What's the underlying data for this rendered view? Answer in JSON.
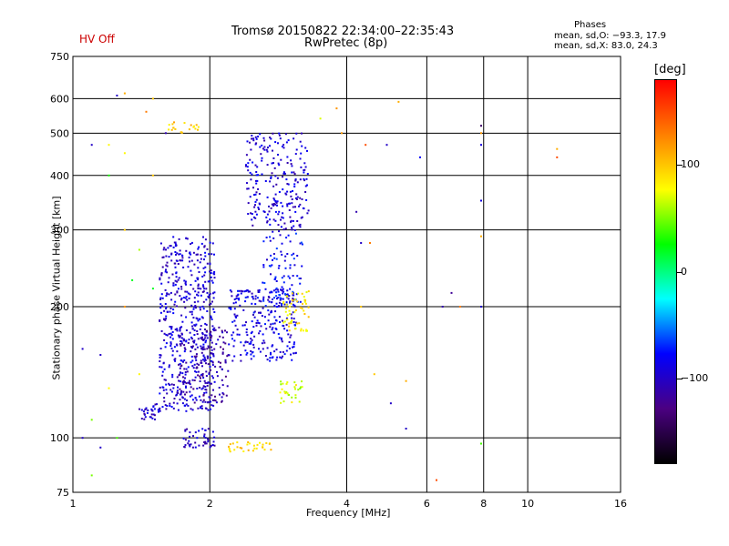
{
  "header": {
    "status": "HV Off",
    "title_line1": "Tromsø 20150822 22:34:00–22:35:43",
    "title_line2": "RwPretec (8p)",
    "phases_title": "Phases",
    "phases_o": "mean, sd,O: −93.3, 17.9",
    "phases_x": "mean, sd,X:  83.0, 24.3"
  },
  "colorbar": {
    "unit": "[deg]",
    "ticks": [
      "100",
      "0",
      "−100"
    ],
    "tick_values": [
      100,
      0,
      -100
    ],
    "range": [
      -180,
      180
    ],
    "colors": [
      "#ff0000",
      "#ff8000",
      "#ffff00",
      "#00ff00",
      "#00ffff",
      "#0000ff",
      "#4b0082",
      "#000000"
    ]
  },
  "colors": {
    "status": "#cc0000",
    "dominant_o": "#1a1aff",
    "dominant_x": "#e6e600"
  },
  "chart_data": {
    "type": "scatter",
    "title": "Tromsø 20150822 22:34:00–22:35:43",
    "subtitle": "RwPretec (8p)",
    "xlabel": "Frequency [MHz]",
    "ylabel": "Stationary phase Virtual Height [km]",
    "x_scale": "log2",
    "y_scale": "log",
    "xlim": [
      1,
      16
    ],
    "ylim": [
      75,
      750
    ],
    "x_ticks": [
      "1",
      "2",
      "4",
      "6",
      "8",
      "10",
      "16"
    ],
    "x_tick_values": [
      1,
      2,
      4,
      6,
      8,
      10,
      16
    ],
    "y_ticks": [
      "750",
      "600",
      "500",
      "400",
      "300",
      "200",
      "100",
      "75"
    ],
    "y_tick_values": [
      750,
      600,
      500,
      400,
      300,
      200,
      100,
      75
    ],
    "grid": true,
    "echo_clusters": [
      {
        "f": [
          1.55,
          2.05
        ],
        "h": [
          115,
          290
        ],
        "n": 520,
        "phase": -95
      },
      {
        "f": [
          1.7,
          2.2
        ],
        "h": [
          120,
          180
        ],
        "n": 160,
        "phase": -110
      },
      {
        "f": [
          2.2,
          3.1
        ],
        "h": [
          150,
          220
        ],
        "n": 260,
        "phase": -90
      },
      {
        "f": [
          2.4,
          3.3
        ],
        "h": [
          300,
          500
        ],
        "n": 240,
        "phase": -95
      },
      {
        "f": [
          2.6,
          3.2
        ],
        "h": [
          200,
          300
        ],
        "n": 90,
        "phase": -80
      },
      {
        "f": [
          1.75,
          2.05
        ],
        "h": [
          95,
          105
        ],
        "n": 45,
        "phase": -100
      },
      {
        "f": [
          1.4,
          1.55
        ],
        "h": [
          110,
          120
        ],
        "n": 30,
        "phase": -100
      },
      {
        "f": [
          2.9,
          3.3
        ],
        "h": [
          175,
          220
        ],
        "n": 55,
        "phase": 85
      },
      {
        "f": [
          2.85,
          3.2
        ],
        "h": [
          120,
          135
        ],
        "n": 30,
        "phase": 70
      },
      {
        "f": [
          2.2,
          2.8
        ],
        "h": [
          93,
          98
        ],
        "n": 30,
        "phase": 95
      },
      {
        "f": [
          1.6,
          1.9
        ],
        "h": [
          500,
          530
        ],
        "n": 20,
        "phase": 100
      }
    ],
    "isolated_echoes": [
      [
        1.25,
        610,
        -100
      ],
      [
        1.3,
        617,
        110
      ],
      [
        1.2,
        470,
        80
      ],
      [
        1.3,
        450,
        80
      ],
      [
        1.5,
        600,
        100
      ],
      [
        1.45,
        560,
        130
      ],
      [
        1.6,
        500,
        -110
      ],
      [
        1.1,
        470,
        -100
      ],
      [
        1.2,
        400,
        30
      ],
      [
        1.5,
        400,
        100
      ],
      [
        1.3,
        300,
        100
      ],
      [
        1.4,
        270,
        60
      ],
      [
        1.35,
        230,
        20
      ],
      [
        1.5,
        220,
        20
      ],
      [
        1.3,
        200,
        120
      ],
      [
        1.05,
        160,
        -100
      ],
      [
        1.15,
        155,
        -100
      ],
      [
        1.4,
        140,
        80
      ],
      [
        1.2,
        130,
        80
      ],
      [
        1.1,
        110,
        50
      ],
      [
        1.05,
        100,
        -100
      ],
      [
        1.15,
        95,
        -100
      ],
      [
        1.25,
        100,
        40
      ],
      [
        1.1,
        82,
        50
      ],
      [
        7.9,
        520,
        -140
      ],
      [
        7.9,
        500,
        120
      ],
      [
        7.9,
        470,
        -90
      ],
      [
        7.9,
        350,
        -90
      ],
      [
        7.9,
        290,
        110
      ],
      [
        7.9,
        200,
        -100
      ],
      [
        7.9,
        97,
        40
      ],
      [
        6.3,
        80,
        150
      ],
      [
        4.4,
        470,
        150
      ],
      [
        4.9,
        470,
        -100
      ],
      [
        5.8,
        440,
        -80
      ],
      [
        11.6,
        460,
        110
      ],
      [
        11.6,
        440,
        150
      ],
      [
        4.2,
        330,
        -110
      ],
      [
        4.3,
        280,
        -100
      ],
      [
        4.5,
        280,
        130
      ],
      [
        4.3,
        200,
        100
      ],
      [
        6.5,
        200,
        -110
      ],
      [
        7.1,
        200,
        130
      ],
      [
        6.8,
        215,
        -120
      ],
      [
        4.6,
        140,
        100
      ],
      [
        5.4,
        135,
        110
      ],
      [
        5.0,
        120,
        -100
      ],
      [
        5.4,
        105,
        -100
      ],
      [
        3.8,
        570,
        120
      ],
      [
        3.9,
        500,
        120
      ],
      [
        3.5,
        540,
        70
      ],
      [
        5.2,
        590,
        110
      ]
    ]
  }
}
